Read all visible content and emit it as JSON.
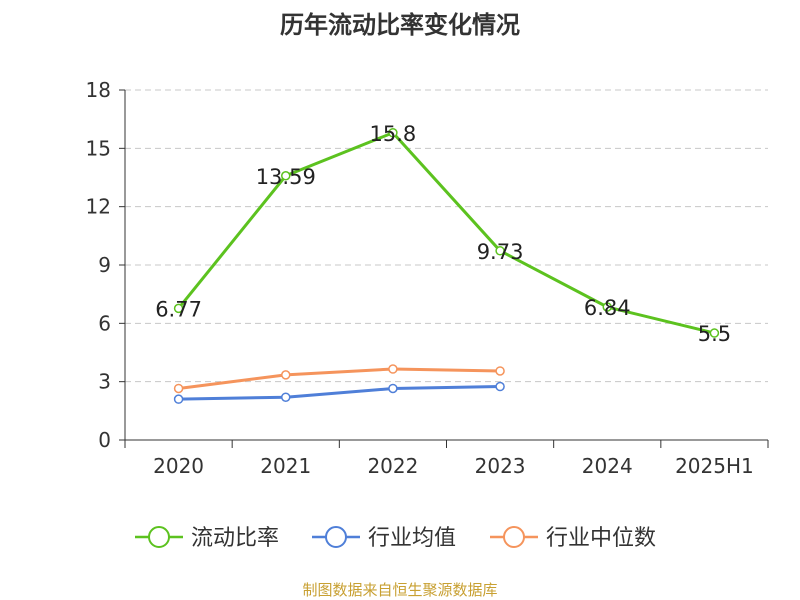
{
  "chart_data": {
    "type": "line",
    "title": "历年流动比率变化情况",
    "categories": [
      "2020",
      "2021",
      "2022",
      "2023",
      "2024",
      "2025H1"
    ],
    "y_ticks": [
      "0",
      "3",
      "6",
      "9",
      "12",
      "15",
      "18"
    ],
    "ylim": [
      0,
      18
    ],
    "grid": true,
    "legend_position": "bottom",
    "series": [
      {
        "name": "流动比率",
        "color": "#5cc21f",
        "values": [
          6.77,
          13.59,
          15.8,
          9.73,
          6.84,
          5.5
        ],
        "labels": [
          "6.77",
          "13.59",
          "15.8",
          "9.73",
          "6.84",
          "5.5"
        ]
      },
      {
        "name": "行业均值",
        "color": "#4f7fd8",
        "values": [
          2.1,
          2.2,
          2.65,
          2.75,
          null,
          null
        ]
      },
      {
        "name": "行业中位数",
        "color": "#f5945c",
        "values": [
          2.65,
          3.35,
          3.65,
          3.55,
          null,
          null
        ]
      }
    ],
    "source": "制图数据来自恒生聚源数据库"
  }
}
